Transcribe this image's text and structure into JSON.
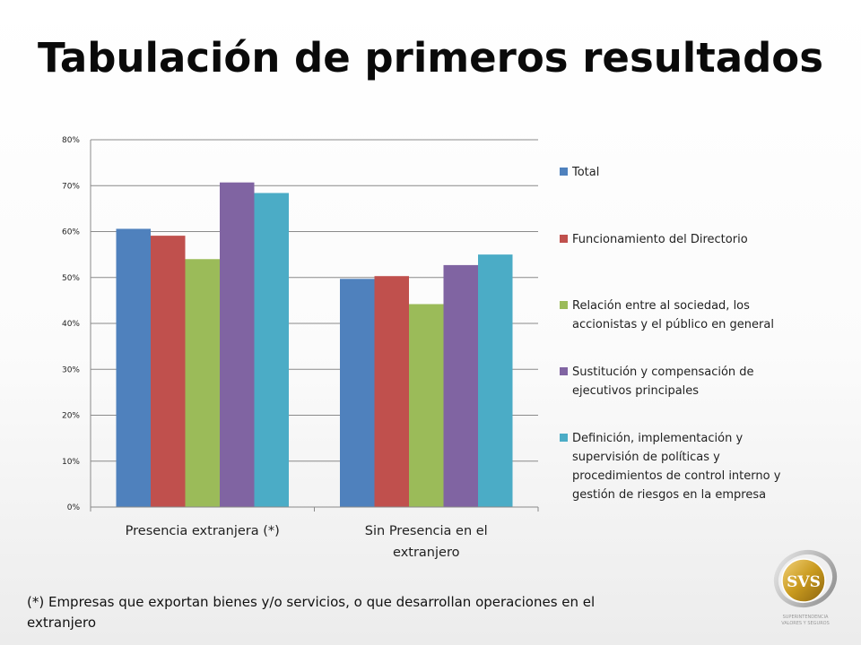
{
  "slide": {
    "title": "Tabulación de primeros resultados",
    "footnote": "(*) Empresas que exportan bienes y/o servicios, o que desarrollan operaciones en el extranjero"
  },
  "logo": {
    "text": "SVS",
    "subtitle_line1": "SUPERINTENDENCIA",
    "subtitle_line2": "VALORES Y SEGUROS",
    "colors": {
      "gold": "#c99a1e",
      "silver": "#9a9a9a"
    }
  },
  "chart_data": {
    "type": "bar",
    "title": "",
    "xlabel": "",
    "ylabel": "",
    "ylim": [
      0,
      0.8
    ],
    "yticks": [
      {
        "value": 0.8,
        "label": "80%"
      },
      {
        "value": 0.7,
        "label": "70%"
      },
      {
        "value": 0.6,
        "label": "60%"
      },
      {
        "value": 0.5,
        "label": "50%"
      },
      {
        "value": 0.4,
        "label": "40%"
      },
      {
        "value": 0.3,
        "label": "30%"
      },
      {
        "value": 0.2,
        "label": "20%"
      },
      {
        "value": 0.1,
        "label": "10%"
      },
      {
        "value": 0.0,
        "label": "0%"
      }
    ],
    "grid": true,
    "legend_position": "right",
    "categories": [
      [
        "Presencia extranjera (*)"
      ],
      [
        "Sin Presencia en el",
        "extranjero"
      ]
    ],
    "series": [
      {
        "name": [
          "Total"
        ],
        "color": "#4f81bd",
        "values": [
          0.606,
          0.497
        ]
      },
      {
        "name": [
          "Funcionamiento del Directorio"
        ],
        "color": "#c0504d",
        "values": [
          0.591,
          0.503
        ]
      },
      {
        "name": [
          "Relación entre al sociedad, los",
          "accionistas y el público en general"
        ],
        "color": "#9bbb59",
        "values": [
          0.54,
          0.442
        ]
      },
      {
        "name": [
          "Sustitución y compensación de",
          "ejecutivos principales"
        ],
        "color": "#8064a2",
        "values": [
          0.707,
          0.527
        ]
      },
      {
        "name": [
          "Definición, implementación y",
          "supervisión de políticas y",
          "procedimientos de control interno y",
          "gestión de riesgos en la empresa"
        ],
        "color": "#4bacc6",
        "values": [
          0.684,
          0.55
        ]
      }
    ]
  }
}
